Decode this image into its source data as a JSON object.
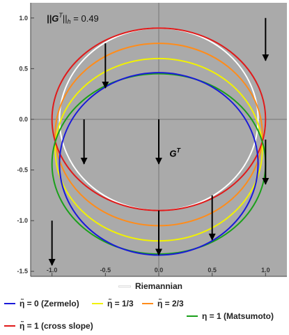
{
  "chart_data": {
    "type": "line",
    "title": "",
    "xlabel": "",
    "ylabel": "",
    "xlim": [
      -1.2,
      1.2
    ],
    "ylim": [
      -1.55,
      1.15
    ],
    "xticks": [
      -1.0,
      -0.5,
      0.0,
      0.5,
      1.0
    ],
    "xtick_labels": [
      "-1.0",
      "-0.5",
      "0.0",
      "0.5",
      "1.0"
    ],
    "yticks": [
      -1.5,
      -1.0,
      -0.5,
      0.0,
      0.5,
      1.0
    ],
    "ytick_labels": [
      "-1.5",
      "-1.0",
      "-0.5",
      "0.0",
      "0.5",
      "1.0"
    ],
    "background": "#aaaaaa",
    "axis_lines": true,
    "grid": false,
    "annotations": {
      "norm_label": "||G",
      "norm_sup": "T",
      "norm_sub": "h",
      "norm_value": " = 0.49",
      "g_label": "G",
      "g_sup": "T"
    },
    "wind_vectors": [
      {
        "x": -0.5,
        "y": 0.75,
        "dy": -0.44
      },
      {
        "x": 1.0,
        "y": 1.0,
        "dy": -0.42
      },
      {
        "x": -0.7,
        "y": 0.0,
        "dy": -0.44
      },
      {
        "x": 0.0,
        "y": 0.0,
        "dy": -0.44
      },
      {
        "x": 1.0,
        "y": -0.2,
        "dy": -0.44
      },
      {
        "x": 0.5,
        "y": -0.75,
        "dy": -0.44
      },
      {
        "x": -1.0,
        "y": -1.0,
        "dy": -0.44
      },
      {
        "x": 0.0,
        "y": -0.9,
        "dy": -0.44
      }
    ],
    "series": [
      {
        "name": "Riemannian",
        "color": "#ffffff",
        "shape": "ellipse",
        "center": [
          0.0,
          0.0
        ],
        "rx": 0.93,
        "ry": 0.9
      },
      {
        "name": "η̃ = 2/3",
        "color": "#ff8c1a",
        "shape": "ellipse",
        "center": [
          0.0,
          -0.15
        ],
        "rx": 0.97,
        "ry": 0.9
      },
      {
        "name": "η̃ = 1/3",
        "color": "#f2f200",
        "shape": "ellipse",
        "center": [
          0.0,
          -0.3
        ],
        "rx": 0.97,
        "ry": 0.9
      },
      {
        "name": "η̃ = 1 (cross slope)",
        "color": "#e01a1a",
        "shape": "ellipse",
        "center": [
          0.0,
          0.0
        ],
        "rx": 1.0,
        "ry": 0.9
      },
      {
        "name": "η = 1 (Matsumoto)",
        "color": "#1aa01a",
        "shape": "ellipse",
        "center": [
          0.0,
          -0.44
        ],
        "rx": 1.0,
        "ry": 0.89
      },
      {
        "name": "η̃ = 0 (Zermelo)",
        "color": "#1a1ad9",
        "shape": "ellipse",
        "center": [
          0.0,
          -0.44
        ],
        "rx": 0.93,
        "ry": 0.9
      }
    ]
  },
  "legend": {
    "zermelo": "η̃ = 0 (Zermelo)",
    "third": "η̃ = 1/3",
    "two_thirds": "η̃ = 2/3",
    "cross": "η̃ = 1 (cross slope)",
    "matsumoto": "η = 1 (Matsumoto)",
    "riemannian": "Riemannian"
  },
  "colors": {
    "zermelo": "#1a1ad9",
    "third": "#f2f200",
    "two_thirds": "#ff8c1a",
    "cross": "#e01a1a",
    "matsumoto": "#1aa01a",
    "riemannian": "#ffffff"
  }
}
